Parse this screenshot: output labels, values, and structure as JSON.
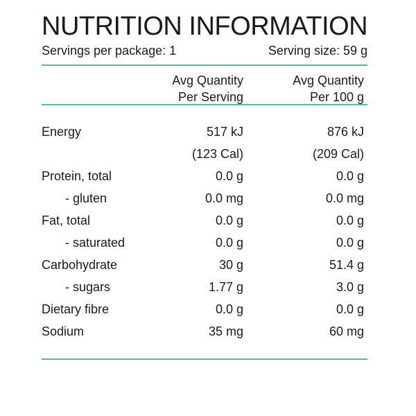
{
  "title": "NUTRITION INFORMATION",
  "servings_per_package": "Servings per package: 1",
  "serving_size": "Serving size: 59 g",
  "header": {
    "col_a_line1": "Avg Quantity",
    "col_a_line2": "Per Serving",
    "col_b_line1": "Avg Quantity",
    "col_b_line2": "Per 100 g"
  },
  "rows": [
    {
      "label": "Energy",
      "per_serving": "517 kJ",
      "per_100g": "876 kJ",
      "sub": false
    },
    {
      "label": "",
      "per_serving": "(123 Cal)",
      "per_100g": "(209 Cal)",
      "sub": false
    },
    {
      "label": "Protein, total",
      "per_serving": "0.0 g",
      "per_100g": "0.0 g",
      "sub": false
    },
    {
      "label": "- gluten",
      "per_serving": "0.0 mg",
      "per_100g": "0.0 mg",
      "sub": true
    },
    {
      "label": "Fat, total",
      "per_serving": "0.0 g",
      "per_100g": "0.0 g",
      "sub": false
    },
    {
      "label": "- saturated",
      "per_serving": "0.0 g",
      "per_100g": "0.0 g",
      "sub": true
    },
    {
      "label": "Carbohydrate",
      "per_serving": "30 g",
      "per_100g": "51.4 g",
      "sub": false
    },
    {
      "label": "- sugars",
      "per_serving": "1.77 g",
      "per_100g": "3.0 g",
      "sub": true
    },
    {
      "label": "Dietary fibre",
      "per_serving": "0.0 g",
      "per_100g": "0.0 g",
      "sub": false
    },
    {
      "label": "Sodium",
      "per_serving": "35 mg",
      "per_100g": "60 mg",
      "sub": false
    }
  ],
  "colors": {
    "rule": "#5bb8a0",
    "text": "#1a1a1a"
  }
}
